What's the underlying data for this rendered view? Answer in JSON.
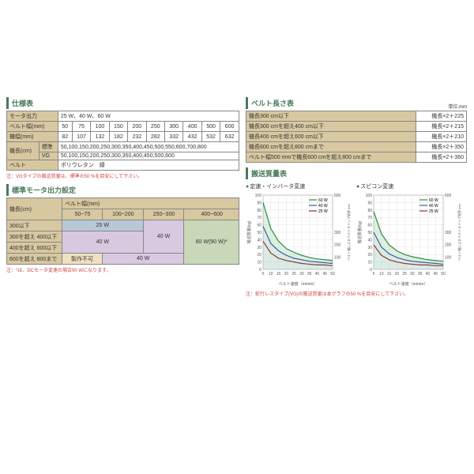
{
  "spec": {
    "title": "仕様表",
    "rows": [
      {
        "k": "モータ出力",
        "v": "25 W、40 W、60 W"
      },
      {
        "k": "ベルト幅(mm)",
        "cells": [
          "50",
          "75",
          "100",
          "150",
          "200",
          "250",
          "300",
          "400",
          "500",
          "600"
        ]
      },
      {
        "k": "機幅(mm)",
        "cells": [
          "82",
          "107",
          "132",
          "182",
          "232",
          "282",
          "332",
          "432",
          "532",
          "632"
        ]
      },
      {
        "k": "機長(cm)",
        "sub": [
          {
            "k": "標準",
            "v": "50,100,150,200,250,300,350,400,450,500,550,600,700,800"
          },
          {
            "k": "VG",
            "v": "50,100,150,200,250,300,350,400,450,500,600"
          }
        ]
      },
      {
        "k": "ベルト",
        "v": "ポリウレタン　緑"
      }
    ],
    "note": "注：VGタイプの搬送質量は、標準の50 %を目安にして下さい。"
  },
  "motor": {
    "title": "標準モータ出力設定",
    "rowhd": "機長(cm)",
    "colhd": "ベルト幅(mm)",
    "cols": [
      "50~75",
      "100~200",
      "250~300",
      "400~600"
    ],
    "rows": [
      "300以下",
      "300を超え 400以下",
      "400を超え 600以下",
      "600を超え 800まで"
    ],
    "val25": "25 W",
    "val40": "40 W",
    "val60": "60 W(90 W)*",
    "valng": "製作不可",
    "note": "注：*は、DCモータ変速の場合90 Wになります。"
  },
  "beltlen": {
    "title": "ベルト長さ表",
    "unit": "単位:mm",
    "rows": [
      {
        "k": "機長300 cm以下",
        "v": "機長×2＋225"
      },
      {
        "k": "機長300 cmを超え400 cm以下",
        "v": "機長×2＋215"
      },
      {
        "k": "機長400 cmを超え600 cm以下",
        "v": "機長×2＋210"
      },
      {
        "k": "機長600 cmを超え800 cmまで",
        "v": "機長×2＋350"
      },
      {
        "k": "ベルト幅500 mmで機長600 cmを超え800 cmまで",
        "v": "機長×2＋360"
      }
    ]
  },
  "mass": {
    "title": "搬送質量表",
    "charts": [
      {
        "t": "定速・インバータ変速"
      },
      {
        "t": "スピコン変速"
      }
    ],
    "xlabel": "ベルト速度（m/min）",
    "ylabel": "搬送質量(kg)",
    "y2label": "ベルト幅によるベルトスリップ限界 mm",
    "legend": [
      "60 W",
      "40 W",
      "25 W"
    ],
    "xlim": [
      5,
      50
    ],
    "xtick": 5,
    "ylim": [
      0,
      100
    ],
    "ytick": 10,
    "y2lim": [
      0,
      600
    ],
    "colors": {
      "60": "#2a8a4a",
      "40": "#3a5aa0",
      "25": "#8a3a3a"
    },
    "fillA": "#c8e8c8",
    "fillB": "#d8e8f0",
    "chart1": {
      "l60": [
        [
          5,
          90
        ],
        [
          10,
          55
        ],
        [
          15,
          38
        ],
        [
          20,
          28
        ],
        [
          25,
          23
        ],
        [
          30,
          19
        ],
        [
          35,
          16
        ],
        [
          40,
          14
        ],
        [
          45,
          13
        ],
        [
          50,
          12
        ]
      ],
      "l40": [
        [
          5,
          58
        ],
        [
          10,
          35
        ],
        [
          15,
          25
        ],
        [
          20,
          19
        ],
        [
          25,
          15
        ],
        [
          30,
          13
        ],
        [
          35,
          11
        ],
        [
          40,
          10
        ],
        [
          45,
          9
        ],
        [
          50,
          8
        ]
      ],
      "l25": [
        [
          5,
          38
        ],
        [
          10,
          22
        ],
        [
          15,
          15
        ],
        [
          20,
          12
        ],
        [
          25,
          10
        ],
        [
          30,
          8
        ],
        [
          35,
          7
        ],
        [
          40,
          6
        ],
        [
          45,
          6
        ],
        [
          50,
          5
        ]
      ]
    },
    "chart2": {
      "l60": [
        [
          5,
          78
        ],
        [
          10,
          48
        ],
        [
          15,
          33
        ],
        [
          20,
          25
        ],
        [
          25,
          20
        ],
        [
          30,
          17
        ],
        [
          35,
          15
        ],
        [
          40,
          13
        ],
        [
          45,
          12
        ],
        [
          50,
          11
        ]
      ],
      "l40": [
        [
          5,
          50
        ],
        [
          10,
          30
        ],
        [
          15,
          21
        ],
        [
          20,
          16
        ],
        [
          25,
          13
        ],
        [
          30,
          11
        ],
        [
          35,
          10
        ],
        [
          40,
          9
        ],
        [
          45,
          8
        ],
        [
          50,
          7
        ]
      ],
      "l25": [
        [
          5,
          33
        ],
        [
          10,
          19
        ],
        [
          15,
          13
        ],
        [
          20,
          10
        ],
        [
          25,
          8
        ],
        [
          30,
          7
        ],
        [
          35,
          6
        ],
        [
          40,
          6
        ],
        [
          45,
          5
        ],
        [
          50,
          5
        ]
      ]
    },
    "note": "注：蛇行レスタイプ(VG)の搬送質量は本グラフの50 %を目安にして下さい。"
  }
}
